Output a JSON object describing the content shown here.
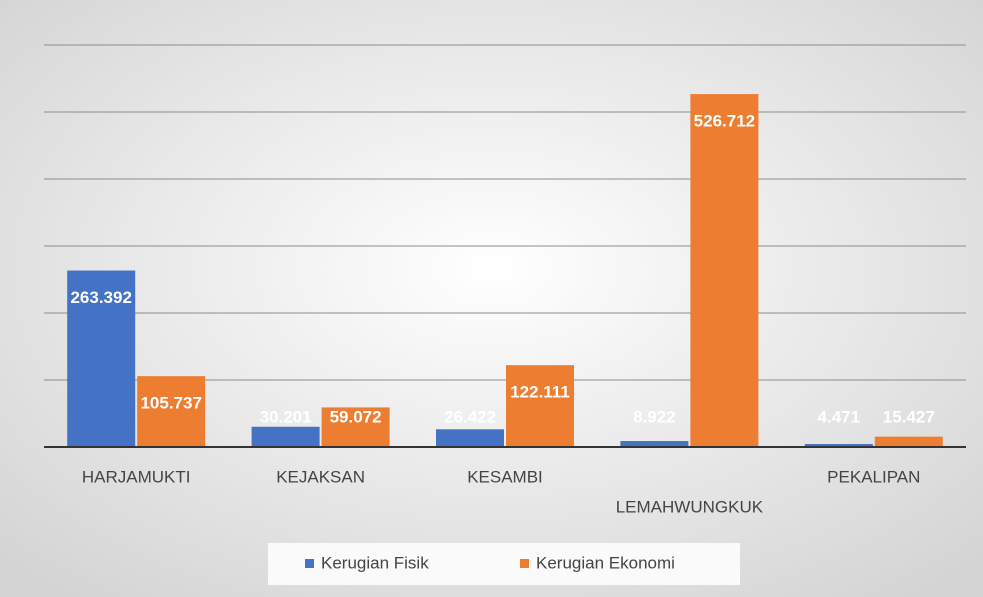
{
  "chart_data": {
    "type": "bar",
    "categories": [
      "HARJAMUKTI",
      "KEJAKSAN",
      "KESAMBI",
      "LEMAHWUNGKUK",
      "PEKALIPAN"
    ],
    "series": [
      {
        "name": "Kerugian Fisik",
        "color": "#4472c4",
        "values": [
          263.392,
          30.201,
          26.422,
          8.922,
          4.471
        ]
      },
      {
        "name": "Kerugian Ekonomi",
        "color": "#ed7d31",
        "values": [
          105.737,
          59.072,
          122.111,
          526.712,
          15.427
        ]
      }
    ],
    "ylim": [
      0,
      600
    ],
    "yticks": [
      0,
      100,
      200,
      300,
      400,
      500,
      600
    ],
    "grid": true,
    "legend": "bottom"
  }
}
